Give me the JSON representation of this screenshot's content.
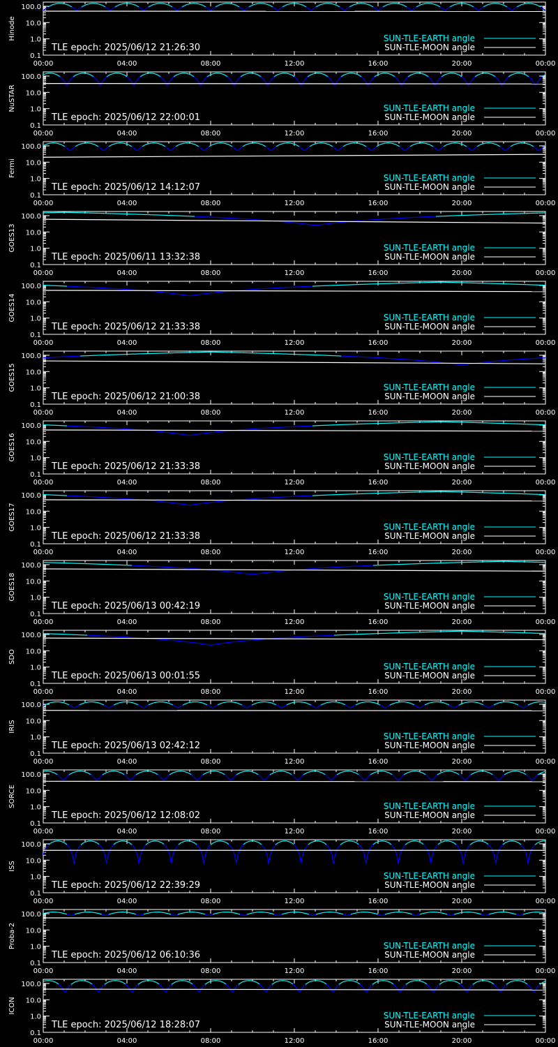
{
  "colors": {
    "background": "#000000",
    "axes": "#ffffff",
    "earth_high": "#00ffff",
    "earth_low": "#0000ff",
    "moon": "#ffffff"
  },
  "legend": {
    "earth_label": "SUN-TLE-EARTH angle",
    "moon_label": "SUN-TLE-MOON angle"
  },
  "chart_data": [
    {
      "type": "line",
      "ylabel": "Hinode",
      "annotation": "TLE epoch: 2025/06/12 21:26:30",
      "xticks": [
        "00:00",
        "04:00",
        "08:00",
        "12:00",
        "16:00",
        "20:00",
        "00:00"
      ],
      "yticks": [
        "0.1",
        "1.0",
        "10.0",
        "100.0"
      ],
      "ylim": [
        0.1,
        180
      ],
      "yscale": "log",
      "xlim_hours": [
        0,
        24
      ],
      "series": [
        {
          "name": "SUN-TLE-EARTH angle",
          "shape": "orbit",
          "period_h": 1.6,
          "min_deg": 55,
          "max_deg": 150,
          "phase": 0.0
        },
        {
          "name": "SUN-TLE-MOON angle",
          "shape": "const",
          "start_deg": 50,
          "end_deg": 48
        }
      ]
    },
    {
      "type": "line",
      "ylabel": "NuSTAR",
      "annotation": "TLE epoch: 2025/06/12 22:00:01",
      "xticks": [
        "00:00",
        "04:00",
        "08:00",
        "12:00",
        "16:00",
        "20:00",
        "00:00"
      ],
      "yticks": [
        "0.1",
        "1.0",
        "10.0",
        "100.0"
      ],
      "ylim": [
        0.1,
        180
      ],
      "yscale": "log",
      "xlim_hours": [
        0,
        24
      ],
      "series": [
        {
          "name": "SUN-TLE-EARTH angle",
          "shape": "orbit",
          "period_h": 1.6,
          "min_deg": 25,
          "max_deg": 150,
          "phase": 0.3
        },
        {
          "name": "SUN-TLE-MOON angle",
          "shape": "const",
          "start_deg": 35,
          "end_deg": 33
        }
      ]
    },
    {
      "type": "line",
      "ylabel": "Fermi",
      "annotation": "TLE epoch: 2025/06/12 14:12:07",
      "xticks": [
        "00:00",
        "04:00",
        "08:00",
        "12:00",
        "16:00",
        "20:00",
        "00:00"
      ],
      "yticks": [
        "0.1",
        "1.0",
        "10.0",
        "100.0"
      ],
      "ylim": [
        0.1,
        180
      ],
      "yscale": "log",
      "xlim_hours": [
        0,
        24
      ],
      "series": [
        {
          "name": "SUN-TLE-EARTH angle",
          "shape": "orbit",
          "period_h": 1.6,
          "min_deg": 50,
          "max_deg": 150,
          "phase": 0.2
        },
        {
          "name": "SUN-TLE-MOON angle",
          "shape": "const",
          "start_deg": 20,
          "end_deg": 30
        }
      ]
    },
    {
      "type": "line",
      "ylabel": "GOES13",
      "annotation": "TLE epoch: 2025/06/11 13:32:38",
      "xticks": [
        "00:00",
        "04:00",
        "08:00",
        "12:00",
        "16:00",
        "20:00",
        "00:00"
      ],
      "yticks": [
        "0.1",
        "1.0",
        "10.0",
        "100.0"
      ],
      "ylim": [
        0.1,
        180
      ],
      "yscale": "log",
      "xlim_hours": [
        0,
        24
      ],
      "series": [
        {
          "name": "SUN-TLE-EARTH angle",
          "shape": "geo",
          "min_deg": 25,
          "max_deg": 160,
          "trough_h": 13.0
        },
        {
          "name": "SUN-TLE-MOON angle",
          "shape": "const",
          "start_deg": 60,
          "end_deg": 35
        }
      ]
    },
    {
      "type": "line",
      "ylabel": "GOES14",
      "annotation": "TLE epoch: 2025/06/12 21:33:38",
      "xticks": [
        "00:00",
        "04:00",
        "08:00",
        "12:00",
        "16:00",
        "20:00",
        "00:00"
      ],
      "yticks": [
        "0.1",
        "1.0",
        "10.0",
        "100.0"
      ],
      "ylim": [
        0.1,
        180
      ],
      "yscale": "log",
      "xlim_hours": [
        0,
        24
      ],
      "series": [
        {
          "name": "SUN-TLE-EARTH angle",
          "shape": "geo",
          "min_deg": 23,
          "max_deg": 160,
          "trough_h": 7.0
        },
        {
          "name": "SUN-TLE-MOON angle",
          "shape": "const",
          "start_deg": 50,
          "end_deg": 42
        }
      ]
    },
    {
      "type": "line",
      "ylabel": "GOES15",
      "annotation": "TLE epoch: 2025/06/12 21:00:38",
      "xticks": [
        "00:00",
        "04:00",
        "08:00",
        "12:00",
        "16:00",
        "20:00",
        "00:00"
      ],
      "yticks": [
        "0.1",
        "1.0",
        "10.0",
        "100.0"
      ],
      "ylim": [
        0.1,
        180
      ],
      "yscale": "log",
      "xlim_hours": [
        0,
        24
      ],
      "series": [
        {
          "name": "SUN-TLE-EARTH angle",
          "shape": "geo",
          "min_deg": 25,
          "max_deg": 160,
          "trough_h": 20.0
        },
        {
          "name": "SUN-TLE-MOON angle",
          "shape": "const",
          "start_deg": 45,
          "end_deg": 30
        }
      ]
    },
    {
      "type": "line",
      "ylabel": "GOES16",
      "annotation": "TLE epoch: 2025/06/12 21:33:38",
      "xticks": [
        "00:00",
        "04:00",
        "08:00",
        "12:00",
        "16:00",
        "20:00",
        "00:00"
      ],
      "yticks": [
        "0.1",
        "1.0",
        "10.0",
        "100.0"
      ],
      "ylim": [
        0.1,
        180
      ],
      "yscale": "log",
      "xlim_hours": [
        0,
        24
      ],
      "series": [
        {
          "name": "SUN-TLE-EARTH angle",
          "shape": "geo",
          "min_deg": 23,
          "max_deg": 160,
          "trough_h": 7.0
        },
        {
          "name": "SUN-TLE-MOON angle",
          "shape": "const",
          "start_deg": 50,
          "end_deg": 42
        }
      ]
    },
    {
      "type": "line",
      "ylabel": "GOES17",
      "annotation": "TLE epoch: 2025/06/12 21:33:38",
      "xticks": [
        "00:00",
        "04:00",
        "08:00",
        "12:00",
        "16:00",
        "20:00",
        "00:00"
      ],
      "yticks": [
        "0.1",
        "1.0",
        "10.0",
        "100.0"
      ],
      "ylim": [
        0.1,
        180
      ],
      "yscale": "log",
      "xlim_hours": [
        0,
        24
      ],
      "series": [
        {
          "name": "SUN-TLE-EARTH angle",
          "shape": "geo",
          "min_deg": 23,
          "max_deg": 160,
          "trough_h": 7.0
        },
        {
          "name": "SUN-TLE-MOON angle",
          "shape": "const",
          "start_deg": 50,
          "end_deg": 42
        }
      ]
    },
    {
      "type": "line",
      "ylabel": "GOES18",
      "annotation": "TLE epoch: 2025/06/13 00:42:19",
      "xticks": [
        "00:00",
        "04:00",
        "08:00",
        "12:00",
        "16:00",
        "20:00",
        "00:00"
      ],
      "yticks": [
        "0.1",
        "1.0",
        "10.0",
        "100.0"
      ],
      "ylim": [
        0.1,
        180
      ],
      "yscale": "log",
      "xlim_hours": [
        0,
        24
      ],
      "series": [
        {
          "name": "SUN-TLE-EARTH angle",
          "shape": "geo",
          "min_deg": 25,
          "max_deg": 160,
          "trough_h": 10.0
        },
        {
          "name": "SUN-TLE-MOON angle",
          "shape": "const",
          "start_deg": 55,
          "end_deg": 40
        }
      ]
    },
    {
      "type": "line",
      "ylabel": "SDO",
      "annotation": "TLE epoch: 2025/06/13 00:01:55",
      "xticks": [
        "00:00",
        "04:00",
        "08:00",
        "12:00",
        "16:00",
        "20:00",
        "00:00"
      ],
      "yticks": [
        "0.1",
        "1.0",
        "10.0",
        "100.0"
      ],
      "ylim": [
        0.1,
        180
      ],
      "yscale": "log",
      "xlim_hours": [
        0,
        24
      ],
      "series": [
        {
          "name": "SUN-TLE-EARTH angle",
          "shape": "geo",
          "min_deg": 22,
          "max_deg": 160,
          "trough_h": 8.0
        },
        {
          "name": "SUN-TLE-MOON angle",
          "shape": "const",
          "start_deg": 60,
          "end_deg": 48
        }
      ]
    },
    {
      "type": "line",
      "ylabel": "IRIS",
      "annotation": "TLE epoch: 2025/06/13 02:42:12",
      "xticks": [
        "00:00",
        "04:00",
        "08:00",
        "12:00",
        "16:00",
        "20:00",
        "00:00"
      ],
      "yticks": [
        "0.1",
        "1.0",
        "10.0",
        "100.0"
      ],
      "ylim": [
        0.1,
        180
      ],
      "yscale": "log",
      "xlim_hours": [
        0,
        24
      ],
      "series": [
        {
          "name": "SUN-TLE-EARTH angle",
          "shape": "orbit",
          "period_h": 1.65,
          "min_deg": 60,
          "max_deg": 140,
          "phase": 0.1
        },
        {
          "name": "SUN-TLE-MOON angle",
          "shape": "const",
          "start_deg": 42,
          "end_deg": 40
        }
      ]
    },
    {
      "type": "line",
      "ylabel": "SORCE",
      "annotation": "TLE epoch: 2025/06/12 12:08:02",
      "xticks": [
        "00:00",
        "04:00",
        "08:00",
        "12:00",
        "16:00",
        "20:00",
        "00:00"
      ],
      "yticks": [
        "0.1",
        "1.0",
        "10.0",
        "100.0"
      ],
      "ylim": [
        0.1,
        180
      ],
      "yscale": "log",
      "xlim_hours": [
        0,
        24
      ],
      "series": [
        {
          "name": "SUN-TLE-EARTH angle",
          "shape": "orbit",
          "period_h": 1.6,
          "min_deg": 40,
          "max_deg": 150,
          "phase": 0.4
        },
        {
          "name": "SUN-TLE-MOON angle",
          "shape": "const",
          "start_deg": 36,
          "end_deg": 34
        }
      ]
    },
    {
      "type": "line",
      "ylabel": "ISS",
      "annotation": "TLE epoch: 2025/06/12 22:39:29",
      "xticks": [
        "00:00",
        "04:00",
        "08:00",
        "12:00",
        "16:00",
        "20:00",
        "00:00"
      ],
      "yticks": [
        "0.1",
        "1.0",
        "10.0",
        "100.0"
      ],
      "ylim": [
        0.1,
        180
      ],
      "yscale": "log",
      "xlim_hours": [
        0,
        24
      ],
      "series": [
        {
          "name": "SUN-TLE-EARTH angle",
          "shape": "orbit",
          "period_h": 1.55,
          "min_deg": 5,
          "max_deg": 150,
          "phase": 0.05
        },
        {
          "name": "SUN-TLE-MOON angle",
          "shape": "const",
          "start_deg": 40,
          "end_deg": 40
        }
      ]
    },
    {
      "type": "line",
      "ylabel": "Proba-2",
      "annotation": "TLE epoch: 2025/06/12 06:10:36",
      "xticks": [
        "00:00",
        "04:00",
        "08:00",
        "12:00",
        "16:00",
        "20:00",
        "00:00"
      ],
      "yticks": [
        "0.1",
        "1.0",
        "10.0",
        "100.0"
      ],
      "ylim": [
        0.1,
        180
      ],
      "yscale": "log",
      "xlim_hours": [
        0,
        24
      ],
      "series": [
        {
          "name": "SUN-TLE-EARTH angle",
          "shape": "orbit",
          "period_h": 1.65,
          "min_deg": 78,
          "max_deg": 125,
          "phase": 0.2
        },
        {
          "name": "SUN-TLE-MOON angle",
          "shape": "const",
          "start_deg": 55,
          "end_deg": 48
        }
      ]
    },
    {
      "type": "line",
      "ylabel": "ICON",
      "annotation": "TLE epoch: 2025/06/12 18:28:07",
      "xticks": [
        "00:00",
        "04:00",
        "08:00",
        "12:00",
        "16:00",
        "20:00",
        "00:00"
      ],
      "yticks": [
        "0.1",
        "1.0",
        "10.0",
        "100.0"
      ],
      "ylim": [
        0.1,
        180
      ],
      "yscale": "log",
      "xlim_hours": [
        0,
        24
      ],
      "series": [
        {
          "name": "SUN-TLE-EARTH angle",
          "shape": "orbit",
          "period_h": 1.6,
          "min_deg": 28,
          "max_deg": 150,
          "phase": 0.35
        },
        {
          "name": "SUN-TLE-MOON angle",
          "shape": "const",
          "start_deg": 45,
          "end_deg": 40
        }
      ]
    }
  ]
}
